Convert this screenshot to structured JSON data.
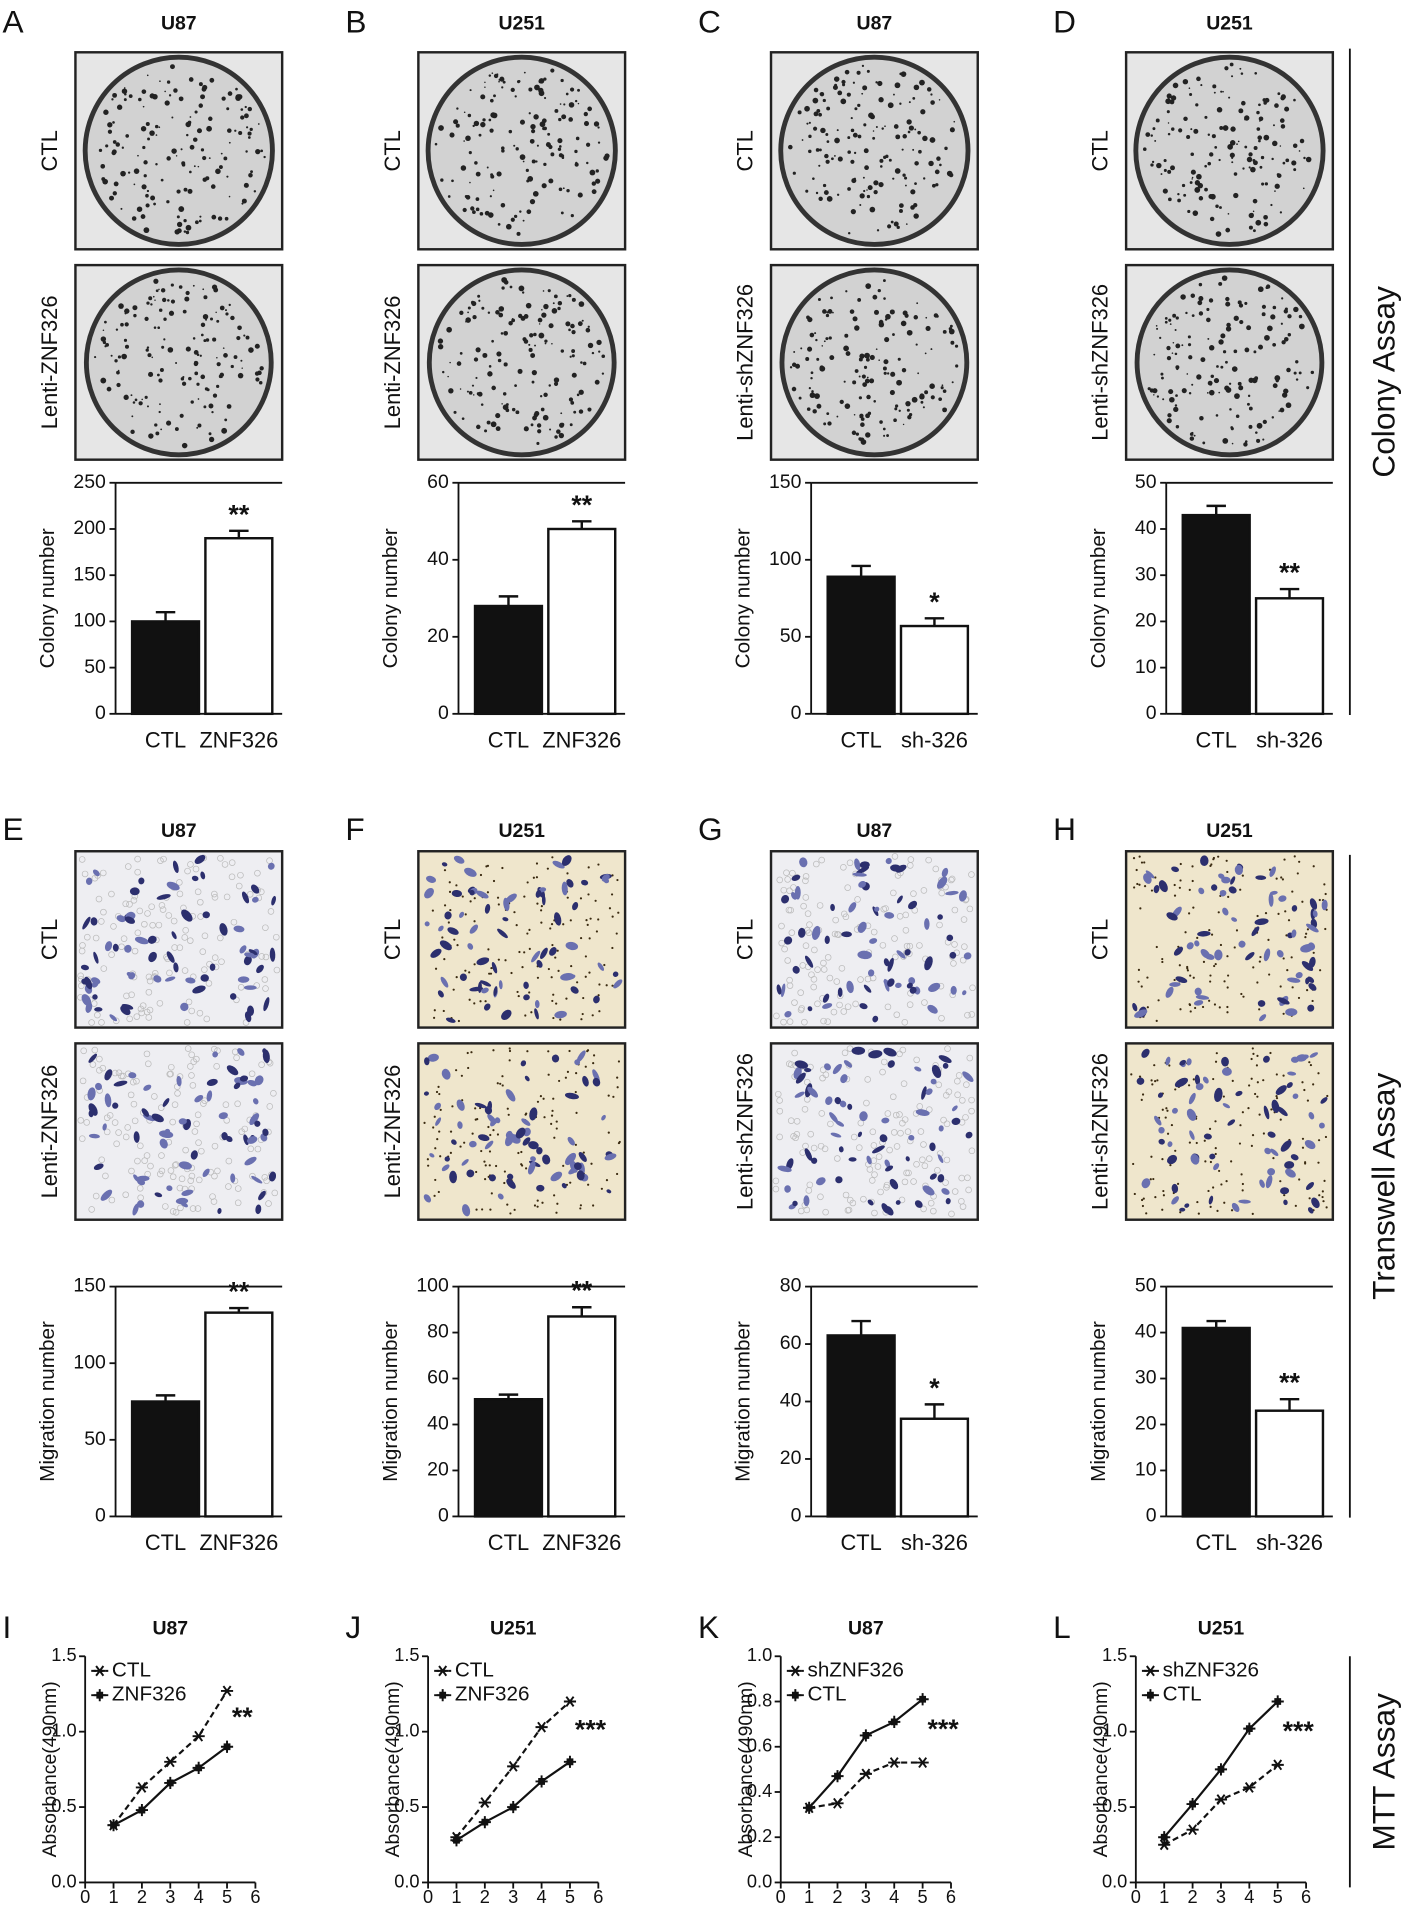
{
  "side_labels": [
    "Colony Assay",
    "Transwell Assay",
    "MTT Assay"
  ],
  "chart_data": [
    {
      "type": "bar",
      "panel": "A",
      "title": "U87",
      "image_labels": [
        "CTL",
        "Lenti-ZNF326"
      ],
      "ylabel": "Colony number",
      "categories": [
        "CTL",
        "ZNF326"
      ],
      "values": [
        100,
        190
      ],
      "errors": [
        10,
        8
      ],
      "colors": [
        "#111111",
        "#ffffff"
      ],
      "ylim": [
        0,
        250
      ],
      "yticks": [
        0,
        50,
        100,
        150,
        200,
        250
      ],
      "annotation": "**"
    },
    {
      "type": "bar",
      "panel": "B",
      "title": "U251",
      "image_labels": [
        "CTL",
        "Lenti-ZNF326"
      ],
      "ylabel": "Colony number",
      "categories": [
        "CTL",
        "ZNF326"
      ],
      "values": [
        28,
        48
      ],
      "errors": [
        2.5,
        2
      ],
      "colors": [
        "#111111",
        "#ffffff"
      ],
      "ylim": [
        0,
        60
      ],
      "yticks": [
        0,
        20,
        40,
        60
      ],
      "annotation": "**"
    },
    {
      "type": "bar",
      "panel": "C",
      "title": "U87",
      "image_labels": [
        "CTL",
        "Lenti-shZNF326"
      ],
      "ylabel": "Colony number",
      "categories": [
        "CTL",
        "sh-326"
      ],
      "values": [
        89,
        57
      ],
      "errors": [
        7,
        5
      ],
      "colors": [
        "#111111",
        "#ffffff"
      ],
      "ylim": [
        0,
        150
      ],
      "yticks": [
        0,
        50,
        100,
        150
      ],
      "annotation": "*"
    },
    {
      "type": "bar",
      "panel": "D",
      "title": "U251",
      "image_labels": [
        "CTL",
        "Lenti-shZNF326"
      ],
      "ylabel": "Colony number",
      "categories": [
        "CTL",
        "sh-326"
      ],
      "values": [
        43,
        25
      ],
      "errors": [
        2,
        2
      ],
      "colors": [
        "#111111",
        "#ffffff"
      ],
      "ylim": [
        0,
        50
      ],
      "yticks": [
        0,
        10,
        20,
        30,
        40,
        50
      ],
      "annotation": "**"
    },
    {
      "type": "bar",
      "panel": "E",
      "title": "U87",
      "image_labels": [
        "CTL",
        "Lenti-ZNF326"
      ],
      "ylabel": "Migration number",
      "categories": [
        "CTL",
        "ZNF326"
      ],
      "values": [
        75,
        133
      ],
      "errors": [
        4,
        3
      ],
      "colors": [
        "#111111",
        "#ffffff"
      ],
      "ylim": [
        0,
        150
      ],
      "yticks": [
        0,
        50,
        100,
        150
      ],
      "annotation": "**"
    },
    {
      "type": "bar",
      "panel": "F",
      "title": "U251",
      "image_labels": [
        "CTL",
        "Lenti-ZNF326"
      ],
      "ylabel": "Migration number",
      "categories": [
        "CTL",
        "ZNF326"
      ],
      "values": [
        51,
        87
      ],
      "errors": [
        2,
        4
      ],
      "colors": [
        "#111111",
        "#ffffff"
      ],
      "ylim": [
        0,
        100
      ],
      "yticks": [
        0,
        20,
        40,
        60,
        80,
        100
      ],
      "annotation": "**"
    },
    {
      "type": "bar",
      "panel": "G",
      "title": "U87",
      "image_labels": [
        "CTL",
        "Lenti-shZNF326"
      ],
      "ylabel": "Migration number",
      "categories": [
        "CTL",
        "sh-326"
      ],
      "values": [
        63,
        34
      ],
      "errors": [
        5,
        5
      ],
      "colors": [
        "#111111",
        "#ffffff"
      ],
      "ylim": [
        0,
        80
      ],
      "yticks": [
        0,
        20,
        40,
        60,
        80
      ],
      "annotation": "*"
    },
    {
      "type": "bar",
      "panel": "H",
      "title": "U251",
      "image_labels": [
        "CTL",
        "Lenti-shZNF326"
      ],
      "ylabel": "Migration number",
      "categories": [
        "CTL",
        "sh-326"
      ],
      "values": [
        41,
        23
      ],
      "errors": [
        1.5,
        2.5
      ],
      "colors": [
        "#111111",
        "#ffffff"
      ],
      "ylim": [
        0,
        50
      ],
      "yticks": [
        0,
        10,
        20,
        30,
        40,
        50
      ],
      "annotation": "**"
    },
    {
      "type": "line",
      "panel": "I",
      "title": "U87",
      "ylabel": "Absorbance(490nm)",
      "x": [
        1,
        2,
        3,
        4,
        5
      ],
      "xlim": [
        0,
        6
      ],
      "xticks": [
        0,
        1,
        2,
        3,
        4,
        5,
        6
      ],
      "ylim": [
        0,
        1.5
      ],
      "yticks": [
        {
          "value": 0,
          "label": "0.0"
        },
        0.5,
        {
          "value": 1,
          "label": "1.0"
        },
        1.5
      ],
      "series": [
        {
          "name": "CTL",
          "color": "#111111",
          "style": "dashed",
          "marker": "asterisk",
          "values": [
            0.38,
            0.63,
            0.8,
            0.97,
            1.27
          ]
        },
        {
          "name": "ZNF326",
          "color": "#111111",
          "style": "solid",
          "marker": "plus",
          "values": [
            0.38,
            0.48,
            0.66,
            0.76,
            0.9
          ]
        }
      ],
      "annotation": "**"
    },
    {
      "type": "line",
      "panel": "J",
      "title": "U251",
      "ylabel": "Absorbance(490nm)",
      "x": [
        1,
        2,
        3,
        4,
        5
      ],
      "xlim": [
        0,
        6
      ],
      "xticks": [
        0,
        1,
        2,
        3,
        4,
        5,
        6
      ],
      "ylim": [
        0,
        1.5
      ],
      "yticks": [
        {
          "value": 0,
          "label": "0.0"
        },
        0.5,
        {
          "value": 1,
          "label": "1.0"
        },
        1.5
      ],
      "series": [
        {
          "name": "CTL",
          "color": "#111111",
          "style": "dashed",
          "marker": "asterisk",
          "values": [
            0.3,
            0.53,
            0.77,
            1.03,
            1.2
          ]
        },
        {
          "name": "ZNF326",
          "color": "#111111",
          "style": "solid",
          "marker": "plus",
          "values": [
            0.28,
            0.4,
            0.5,
            0.67,
            0.8
          ]
        }
      ],
      "annotation": "***"
    },
    {
      "type": "line",
      "panel": "K",
      "title": "U87",
      "ylabel": "Absorbance(490nm)",
      "x": [
        1,
        2,
        3,
        4,
        5
      ],
      "xlim": [
        0,
        6
      ],
      "xticks": [
        0,
        1,
        2,
        3,
        4,
        5,
        6
      ],
      "ylim": [
        0,
        1
      ],
      "yticks": [
        {
          "value": 0,
          "label": "0.0"
        },
        0.2,
        0.4,
        0.6,
        0.8,
        {
          "value": 1,
          "label": "1.0"
        }
      ],
      "series": [
        {
          "name": "shZNF326",
          "color": "#111111",
          "style": "dashed",
          "marker": "asterisk",
          "values": [
            0.33,
            0.35,
            0.48,
            0.53,
            0.53
          ]
        },
        {
          "name": "CTL",
          "color": "#111111",
          "style": "solid",
          "marker": "plus",
          "values": [
            0.33,
            0.47,
            0.65,
            0.71,
            0.81
          ]
        }
      ],
      "annotation": "***"
    },
    {
      "type": "line",
      "panel": "L",
      "title": "U251",
      "ylabel": "Absorbance(490nm)",
      "x": [
        1,
        2,
        3,
        4,
        5
      ],
      "xlim": [
        0,
        6
      ],
      "xticks": [
        0,
        1,
        2,
        3,
        4,
        5,
        6
      ],
      "ylim": [
        0,
        1.5
      ],
      "yticks": [
        {
          "value": 0,
          "label": "0.0"
        },
        0.5,
        {
          "value": 1,
          "label": "1.0"
        },
        1.5
      ],
      "series": [
        {
          "name": "shZNF326",
          "color": "#111111",
          "style": "dashed",
          "marker": "asterisk",
          "values": [
            0.25,
            0.35,
            0.55,
            0.63,
            0.78
          ]
        },
        {
          "name": "CTL",
          "color": "#111111",
          "style": "solid",
          "marker": "plus",
          "values": [
            0.3,
            0.52,
            0.75,
            1.02,
            1.2
          ]
        }
      ],
      "annotation": "***"
    }
  ]
}
